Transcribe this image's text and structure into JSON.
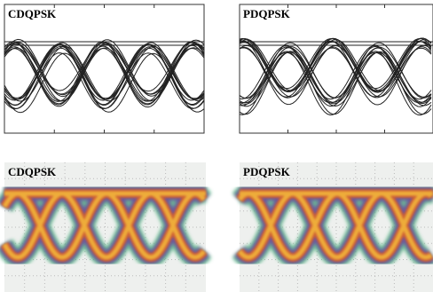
{
  "panels": [
    {
      "label": "CDQPSK"
    },
    {
      "label": "PDQPSK"
    },
    {
      "label": "CDQPSK"
    },
    {
      "label": "PDQPSK"
    }
  ]
}
